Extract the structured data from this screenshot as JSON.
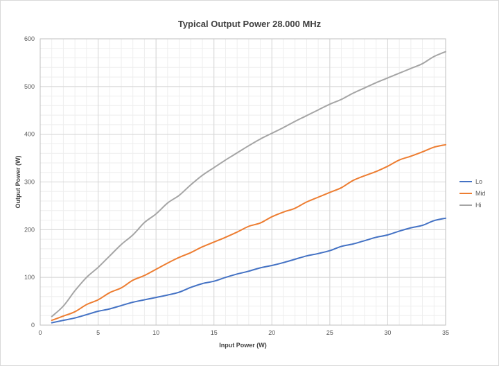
{
  "chart_data": {
    "type": "line",
    "title": "Typical Output Power 28.000 MHz",
    "xlabel": "Input Power (W)",
    "ylabel": "Output Power (W)",
    "xlim": [
      0,
      35
    ],
    "ylim": [
      0,
      600
    ],
    "xticks": [
      0,
      5,
      10,
      15,
      20,
      25,
      30,
      35
    ],
    "yticks": [
      0,
      100,
      200,
      300,
      400,
      500,
      600
    ],
    "grid": true,
    "minor_grid": true,
    "legend_position": "right",
    "x": [
      1,
      2,
      3,
      4,
      5,
      6,
      7,
      8,
      9,
      10,
      11,
      12,
      13,
      14,
      15,
      16,
      17,
      18,
      19,
      20,
      21,
      22,
      23,
      24,
      25,
      26,
      27,
      28,
      29,
      30,
      31,
      32,
      33,
      34,
      35
    ],
    "series": [
      {
        "name": "Lo",
        "color": "#4472C4",
        "values": [
          5,
          10,
          15,
          22,
          29,
          34,
          41,
          48,
          53,
          58,
          63,
          69,
          79,
          87,
          92,
          100,
          107,
          113,
          120,
          125,
          131,
          138,
          145,
          150,
          156,
          165,
          170,
          177,
          184,
          189,
          197,
          204,
          209,
          219,
          224
        ]
      },
      {
        "name": "Mid",
        "color": "#ED7D31",
        "values": [
          10,
          19,
          28,
          43,
          53,
          68,
          78,
          94,
          104,
          117,
          130,
          142,
          152,
          164,
          174,
          184,
          195,
          207,
          214,
          227,
          237,
          245,
          258,
          268,
          278,
          288,
          303,
          313,
          322,
          333,
          346,
          354,
          363,
          373,
          378
        ]
      },
      {
        "name": "Hi",
        "color": "#A5A5A5",
        "values": [
          18,
          40,
          72,
          100,
          121,
          145,
          169,
          189,
          215,
          233,
          256,
          272,
          294,
          314,
          330,
          346,
          361,
          376,
          390,
          402,
          414,
          427,
          439,
          451,
          463,
          473,
          486,
          497,
          508,
          518,
          528,
          538,
          548,
          563,
          573
        ]
      }
    ]
  }
}
